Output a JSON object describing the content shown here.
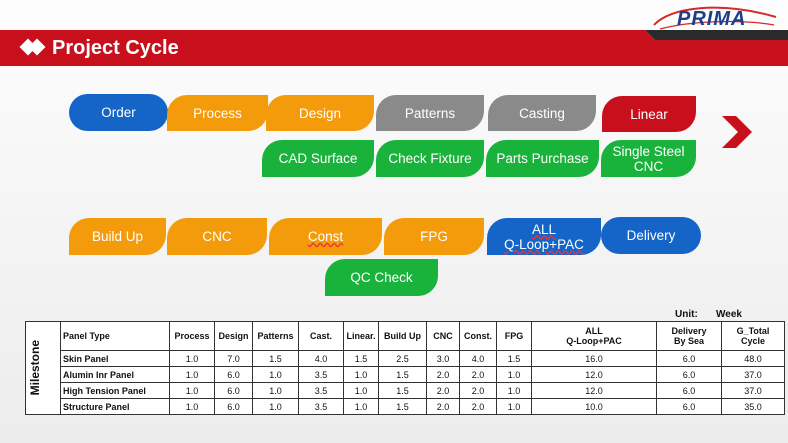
{
  "logo": {
    "text": "PRIMA"
  },
  "title": "Project Cycle",
  "row1": [
    "Order",
    "Process",
    "Design",
    "Patterns",
    "Casting",
    "Linear"
  ],
  "row1b": [
    "CAD Surface",
    "Check Fixture",
    "Parts Purchase",
    "Single Steel CNC"
  ],
  "row2": [
    "Build Up",
    "CNC",
    "Const",
    "FPG",
    "ALL\nQ-Loop+PAC",
    "Delivery"
  ],
  "row2b": [
    "QC Check"
  ],
  "unit": {
    "label": "Unit:",
    "value": "Week"
  },
  "table": {
    "side_label": "Milestone",
    "headers": [
      "Panel Type",
      "Process",
      "Design",
      "Patterns",
      "Cast.",
      "Linear.",
      "Build Up",
      "CNC",
      "Const.",
      "FPG",
      "ALL\nQ-Loop+PAC",
      "Delivery\nBy Sea",
      "G_Total\nCycle"
    ],
    "rows": [
      [
        "Skin Panel",
        "1.0",
        "7.0",
        "1.5",
        "4.0",
        "1.5",
        "2.5",
        "3.0",
        "4.0",
        "1.5",
        "16.0",
        "6.0",
        "48.0"
      ],
      [
        "Alumin Inr Panel",
        "1.0",
        "6.0",
        "1.0",
        "3.5",
        "1.0",
        "1.5",
        "2.0",
        "2.0",
        "1.0",
        "12.0",
        "6.0",
        "37.0"
      ],
      [
        "High Tension  Panel",
        "1.0",
        "6.0",
        "1.0",
        "3.5",
        "1.0",
        "1.5",
        "2.0",
        "2.0",
        "1.0",
        "12.0",
        "6.0",
        "37.0"
      ],
      [
        "Structure Panel",
        "1.0",
        "6.0",
        "1.0",
        "3.5",
        "1.0",
        "1.5",
        "2.0",
        "2.0",
        "1.0",
        "10.0",
        "6.0",
        "35.0"
      ]
    ]
  },
  "colors": {
    "red": "#c8101c",
    "blue": "#1565c8",
    "orange": "#f49b0b",
    "grey": "#8a8a8a",
    "green": "#19b33c"
  }
}
